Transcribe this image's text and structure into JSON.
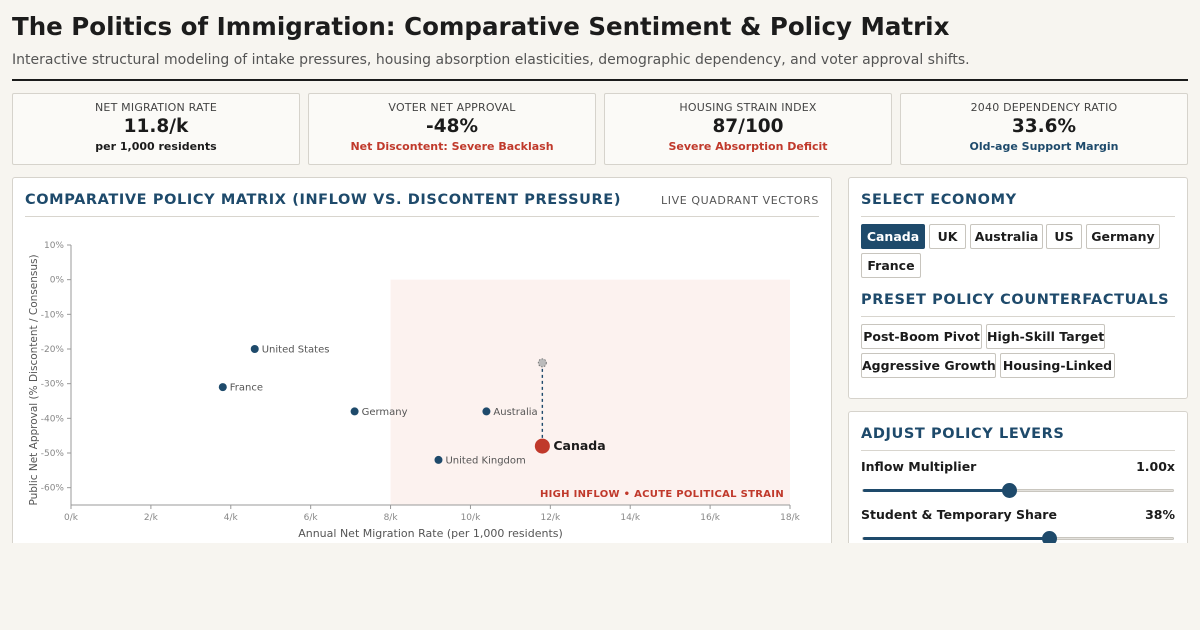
{
  "header": {
    "title": "The Politics of Immigration: Comparative Sentiment & Policy Matrix",
    "subtitle": "Interactive structural modeling of intake pressures, housing absorption elasticities, demographic dependency, and voter approval shifts."
  },
  "kpis": [
    {
      "label": "NET MIGRATION RATE",
      "value": "11.8/k",
      "sub": "per 1,000 residents",
      "sub_color": "#1b1b1b"
    },
    {
      "label": "VOTER NET APPROVAL",
      "value": "-48%",
      "sub": "Net Discontent: Severe Backlash",
      "sub_color": "#c0392b"
    },
    {
      "label": "HOUSING STRAIN INDEX",
      "value": "87/100",
      "sub": "Severe Absorption Deficit",
      "sub_color": "#c0392b"
    },
    {
      "label": "2040 DEPENDENCY RATIO",
      "value": "33.6%",
      "sub": "Old-age Support Margin",
      "sub_color": "#1e4a6b"
    }
  ],
  "matrix": {
    "heading": "COMPARATIVE POLICY MATRIX (INFLOW VS. DISCONTENT PRESSURE)",
    "live_label": "LIVE QUADRANT VECTORS",
    "zone_label": "HIGH INFLOW • ACUTE POLITICAL STRAIN"
  },
  "chart_data": {
    "type": "scatter",
    "xlabel": "Annual Net Migration Rate (per 1,000 residents)",
    "ylabel": "Public Net Approval (% Discontent / Consensus)",
    "xlim": [
      0,
      18
    ],
    "ylim": [
      -65,
      10
    ],
    "x_ticks": [
      0,
      2,
      4,
      6,
      8,
      10,
      12,
      14,
      16,
      18
    ],
    "x_tick_labels": [
      "0/k",
      "2/k",
      "4/k",
      "6/k",
      "8/k",
      "10/k",
      "12/k",
      "14/k",
      "16/k",
      "18/k"
    ],
    "y_ticks": [
      10,
      0,
      -10,
      -20,
      -30,
      -40,
      -50,
      -60
    ],
    "y_tick_labels": [
      "10%",
      "0%",
      "-10%",
      "-20%",
      "-30%",
      "-40%",
      "-50%",
      "-60%"
    ],
    "highlight_zone": {
      "x": [
        8,
        18
      ],
      "y": [
        -65,
        0
      ]
    },
    "points": [
      {
        "name": "United States",
        "x": 4.6,
        "y": -20
      },
      {
        "name": "France",
        "x": 3.8,
        "y": -31
      },
      {
        "name": "Germany",
        "x": 7.1,
        "y": -38
      },
      {
        "name": "Australia",
        "x": 10.4,
        "y": -38
      },
      {
        "name": "United Kingdom",
        "x": 9.2,
        "y": -52
      },
      {
        "name": "Canada",
        "x": 11.8,
        "y": -48,
        "selected": true
      }
    ],
    "vector": {
      "from": {
        "x": 11.8,
        "y": -24
      },
      "to": {
        "x": 11.8,
        "y": -48
      }
    },
    "point_color": "#1e4a6b",
    "selected_color": "#c0392b",
    "zone_color": "#fcf2ef"
  },
  "economy": {
    "heading": "SELECT ECONOMY",
    "options": [
      "Canada",
      "UK",
      "Australia",
      "US",
      "Germany",
      "France"
    ],
    "selected": "Canada"
  },
  "presets": {
    "heading": "PRESET POLICY COUNTERFACTUALS",
    "options": [
      "Post-Boom Pivot",
      "High-Skill Target",
      "Aggressive Growth",
      "Housing-Linked"
    ]
  },
  "levers": {
    "heading": "ADJUST POLICY LEVERS",
    "items": [
      {
        "label": "Inflow Multiplier",
        "value": "1.00x",
        "fraction": 0.47
      },
      {
        "label": "Student & Temporary Share",
        "value": "38%",
        "fraction": 0.6
      }
    ]
  },
  "colors": {
    "accent": "#1e4a6b",
    "danger": "#c0392b"
  }
}
